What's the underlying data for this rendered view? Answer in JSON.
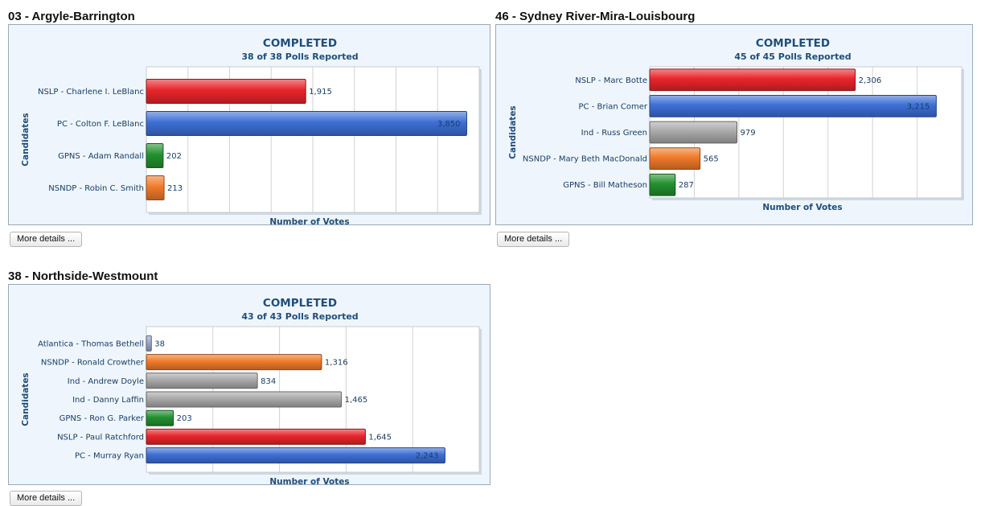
{
  "colors": {
    "NSLP": "#e8252b",
    "PC": "#3d6fd6",
    "GPNS": "#23912f",
    "NSNDP": "#f07a2a",
    "Ind": "#a9a9a9",
    "Atlantica": "#9aa6c8"
  },
  "districts": [
    {
      "title": "03 - Argyle-Barrington",
      "more_label": "More details ...",
      "chart_data": {
        "type": "bar",
        "orientation": "horizontal",
        "status": "COMPLETED",
        "polls": "38 of 38 Polls Reported",
        "xlabel": "Number of Votes",
        "ylabel": "Candidates",
        "xlim": [
          0,
          4000
        ],
        "grid": true,
        "categories": [
          "NSLP - Charlene I. LeBlanc",
          "PC - Colton F. LeBlanc",
          "GPNS - Adam Randall",
          "NSNDP - Robin C. Smith"
        ],
        "values": [
          1915,
          3850,
          202,
          213
        ],
        "value_labels": [
          "1,915",
          "3,850",
          "202",
          "213"
        ],
        "parties": [
          "NSLP",
          "PC",
          "GPNS",
          "NSNDP"
        ]
      }
    },
    {
      "title": "46 - Sydney River-Mira-Louisbourg",
      "more_label": "More details ...",
      "chart_data": {
        "type": "bar",
        "orientation": "horizontal",
        "status": "COMPLETED",
        "polls": "45 of 45 Polls Reported",
        "xlabel": "Number of Votes",
        "ylabel": "Candidates",
        "xlim": [
          0,
          3500
        ],
        "grid": true,
        "categories": [
          "NSLP - Marc Botte",
          "PC - Brian Comer",
          "Ind - Russ Green",
          "NSNDP - Mary Beth MacDonald",
          "GPNS - Bill Matheson"
        ],
        "values": [
          2306,
          3215,
          979,
          565,
          287
        ],
        "value_labels": [
          "2,306",
          "3,215",
          "979",
          "565",
          "287"
        ],
        "parties": [
          "NSLP",
          "PC",
          "Ind",
          "NSNDP",
          "GPNS"
        ]
      }
    },
    {
      "title": "38 - Northside-Westmount",
      "more_label": "More details ...",
      "chart_data": {
        "type": "bar",
        "orientation": "horizontal",
        "status": "COMPLETED",
        "polls": "43 of 43 Polls Reported",
        "xlabel": "Number of Votes",
        "ylabel": "Candidates",
        "xlim": [
          0,
          2500
        ],
        "grid": true,
        "categories": [
          "Atlantica - Thomas Bethell",
          "NSNDP - Ronald Crowther",
          "Ind - Andrew Doyle",
          "Ind - Danny Laffin",
          "GPNS - Ron G. Parker",
          "NSLP - Paul Ratchford",
          "PC - Murray Ryan"
        ],
        "values": [
          38,
          1316,
          834,
          1465,
          203,
          1645,
          2243
        ],
        "value_labels": [
          "38",
          "1,316",
          "834",
          "1,465",
          "203",
          "1,645",
          "2,243"
        ],
        "parties": [
          "Atlantica",
          "NSNDP",
          "Ind",
          "Ind",
          "GPNS",
          "NSLP",
          "PC"
        ]
      }
    }
  ]
}
